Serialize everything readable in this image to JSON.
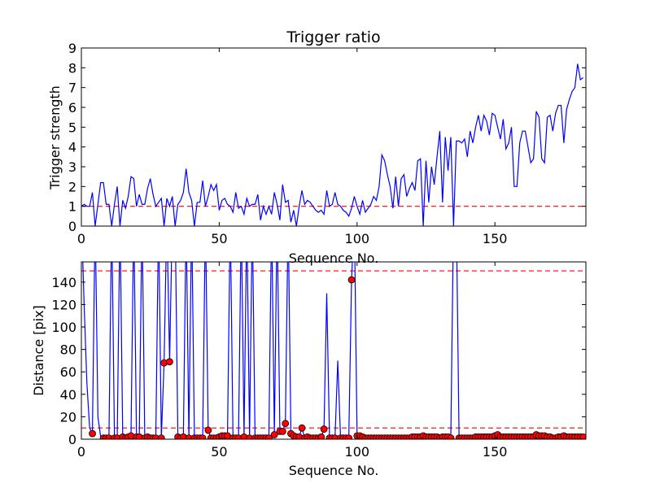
{
  "chart_data": [
    {
      "type": "line",
      "title": "Trigger ratio",
      "xlabel": "Sequence No.",
      "ylabel": "Trigger strength",
      "xlim": [
        0,
        183
      ],
      "ylim": [
        0,
        9
      ],
      "xticks": [
        "0",
        "50",
        "100",
        "150"
      ],
      "yticks": [
        "0",
        "1",
        "2",
        "3",
        "4",
        "5",
        "6",
        "7",
        "8",
        "9"
      ],
      "grid": false,
      "line_color": "#0000ff",
      "threshold": 1.0,
      "threshold_color": "#ff0000",
      "series": [
        {
          "values": [
            1.0,
            1.1,
            1.0,
            1.0,
            1.7,
            0.0,
            1.1,
            2.2,
            2.2,
            1.1,
            1.1,
            0.0,
            1.1,
            2.0,
            0.0,
            1.3,
            0.9,
            1.5,
            2.5,
            2.4,
            1.0,
            1.6,
            1.1,
            1.1,
            1.9,
            2.4,
            1.6,
            1.0,
            1.2,
            1.4,
            0.0,
            1.4,
            1.0,
            1.5,
            0.0,
            1.1,
            1.3,
            1.7,
            2.9,
            1.7,
            1.3,
            0.0,
            1.2,
            1.2,
            2.3,
            1.0,
            1.5,
            2.1,
            1.8,
            2.1,
            0.8,
            1.3,
            1.4,
            1.1,
            1.0,
            0.7,
            1.7,
            0.9,
            1.0,
            0.6,
            1.4,
            1.0,
            1.1,
            1.1,
            1.6,
            0.3,
            1.0,
            0.6,
            1.0,
            0.6,
            1.7,
            1.1,
            0.3,
            2.1,
            1.2,
            1.3,
            0.2,
            0.8,
            0.0,
            1.0,
            1.8,
            1.1,
            1.3,
            1.2,
            1.0,
            0.8,
            0.7,
            0.8,
            0.6,
            1.8,
            1.0,
            1.1,
            1.7,
            1.1,
            1.0,
            0.8,
            0.7,
            0.5,
            0.9,
            1.5,
            1.0,
            0.6,
            1.3,
            0.7,
            0.9,
            1.1,
            1.5,
            1.3,
            2.0,
            3.6,
            3.3,
            2.6,
            2.0,
            0.9,
            2.5,
            1.0,
            2.4,
            2.6,
            1.5,
            1.9,
            2.2,
            1.8,
            3.3,
            3.4,
            0.0,
            3.3,
            1.2,
            3.0,
            2.1,
            3.5,
            4.8,
            1.2,
            4.5,
            2.8,
            4.5,
            0.0,
            4.3,
            4.3,
            4.2,
            4.4,
            3.5,
            4.8,
            4.2,
            5.0,
            5.6,
            4.8,
            5.6,
            5.3,
            4.6,
            5.7,
            5.6,
            5.0,
            4.4,
            5.4,
            3.9,
            4.2,
            5.0,
            2.0,
            2.0,
            4.2,
            4.8,
            4.8,
            4.0,
            3.2,
            3.4,
            5.8,
            5.5,
            3.4,
            3.2,
            5.5,
            5.6,
            4.8,
            5.7,
            6.1,
            6.1,
            4.2,
            5.9,
            6.4,
            6.8,
            7.0,
            8.2,
            7.4,
            7.5
          ]
        }
      ]
    },
    {
      "type": "line",
      "title": "",
      "xlabel": "Sequence No.",
      "ylabel": "Distance [pix]",
      "xlim": [
        0,
        183
      ],
      "ylim": [
        0,
        158
      ],
      "xticks": [
        "0",
        "50",
        "100",
        "150"
      ],
      "yticks": [
        "0",
        "20",
        "40",
        "60",
        "80",
        "100",
        "120",
        "140"
      ],
      "grid": false,
      "line_color": "#0000ff",
      "marker_color": "#ff0000",
      "thresholds": [
        10,
        150
      ],
      "threshold_color": "#ff0000",
      "series": [
        {
          "values": [
            200,
            120,
            50,
            10,
            5,
            200,
            20,
            2,
            1,
            1,
            1,
            200,
            1,
            1,
            200,
            2,
            1,
            2,
            3,
            200,
            2,
            2,
            200,
            1,
            2,
            1,
            1,
            1,
            200,
            1,
            68,
            200,
            69,
            200,
            200,
            2,
            1,
            2,
            200,
            1,
            200,
            1,
            1,
            1,
            1,
            200,
            8,
            1,
            1,
            1,
            2,
            3,
            3,
            3,
            200,
            1,
            1,
            1,
            200,
            2,
            200,
            1,
            200,
            1,
            1,
            1,
            1,
            1,
            1,
            200,
            4,
            200,
            7,
            7,
            14,
            200,
            5,
            3,
            2,
            2,
            10,
            1,
            2,
            1,
            1,
            1,
            1,
            2,
            9,
            130,
            1,
            1,
            1,
            70,
            1,
            1,
            1,
            1,
            142,
            200,
            3,
            3,
            2,
            1,
            1,
            1,
            1,
            1,
            1,
            1,
            1,
            1,
            1,
            1,
            1,
            1,
            1,
            1,
            1,
            1,
            2,
            2,
            2,
            2,
            3,
            2,
            2,
            2,
            2,
            2,
            1,
            2,
            2,
            2,
            1,
            200,
            200,
            1,
            1,
            1,
            1,
            1,
            1,
            2,
            2,
            2,
            2,
            2,
            2,
            2,
            3,
            4,
            2,
            2,
            2,
            2,
            2,
            2,
            2,
            2,
            2,
            2,
            2,
            2,
            2,
            4,
            3,
            3,
            3,
            2,
            2,
            1,
            1,
            2,
            2,
            3,
            2,
            2,
            2,
            2,
            2,
            2,
            2,
            2,
            2,
            2,
            2
          ],
          "markers": [
            [
              4,
              5
            ],
            [
              8,
              1
            ],
            [
              9,
              1
            ],
            [
              10,
              1
            ],
            [
              12,
              1
            ],
            [
              13,
              1
            ],
            [
              15,
              2
            ],
            [
              16,
              1
            ],
            [
              17,
              2
            ],
            [
              18,
              3
            ],
            [
              20,
              2
            ],
            [
              21,
              2
            ],
            [
              23,
              1
            ],
            [
              24,
              2
            ],
            [
              25,
              1
            ],
            [
              26,
              1
            ],
            [
              27,
              1
            ],
            [
              29,
              1
            ],
            [
              30,
              68
            ],
            [
              32,
              69
            ],
            [
              35,
              2
            ],
            [
              36,
              1
            ],
            [
              37,
              2
            ],
            [
              39,
              1
            ],
            [
              41,
              1
            ],
            [
              42,
              1
            ],
            [
              43,
              1
            ],
            [
              44,
              1
            ],
            [
              46,
              8
            ],
            [
              47,
              1
            ],
            [
              48,
              1
            ],
            [
              49,
              1
            ],
            [
              50,
              2
            ],
            [
              51,
              3
            ],
            [
              52,
              3
            ],
            [
              53,
              3
            ],
            [
              55,
              1
            ],
            [
              56,
              1
            ],
            [
              57,
              1
            ],
            [
              59,
              2
            ],
            [
              61,
              1
            ],
            [
              63,
              1
            ],
            [
              64,
              1
            ],
            [
              65,
              1
            ],
            [
              66,
              1
            ],
            [
              67,
              1
            ],
            [
              68,
              1
            ],
            [
              70,
              4
            ],
            [
              72,
              7
            ],
            [
              73,
              7
            ],
            [
              74,
              14
            ],
            [
              76,
              5
            ],
            [
              77,
              3
            ],
            [
              78,
              2
            ],
            [
              79,
              2
            ],
            [
              80,
              10
            ],
            [
              81,
              1
            ],
            [
              82,
              2
            ],
            [
              83,
              1
            ],
            [
              84,
              1
            ],
            [
              85,
              1
            ],
            [
              86,
              1
            ],
            [
              87,
              2
            ],
            [
              88,
              9
            ],
            [
              90,
              1
            ],
            [
              91,
              1
            ],
            [
              92,
              1
            ],
            [
              94,
              1
            ],
            [
              95,
              1
            ],
            [
              96,
              1
            ],
            [
              97,
              1
            ],
            [
              98,
              142
            ],
            [
              100,
              3
            ],
            [
              101,
              3
            ],
            [
              102,
              2
            ],
            [
              103,
              1
            ],
            [
              104,
              1
            ],
            [
              105,
              1
            ],
            [
              106,
              1
            ],
            [
              107,
              1
            ],
            [
              108,
              1
            ],
            [
              109,
              1
            ],
            [
              110,
              1
            ],
            [
              111,
              1
            ],
            [
              112,
              1
            ],
            [
              113,
              1
            ],
            [
              114,
              1
            ],
            [
              115,
              1
            ],
            [
              116,
              1
            ],
            [
              117,
              1
            ],
            [
              118,
              1
            ],
            [
              119,
              1
            ],
            [
              120,
              2
            ],
            [
              121,
              2
            ],
            [
              122,
              2
            ],
            [
              123,
              2
            ],
            [
              124,
              3
            ],
            [
              125,
              2
            ],
            [
              126,
              2
            ],
            [
              127,
              2
            ],
            [
              128,
              2
            ],
            [
              129,
              2
            ],
            [
              130,
              1
            ],
            [
              131,
              2
            ],
            [
              132,
              2
            ],
            [
              133,
              2
            ],
            [
              134,
              1
            ],
            [
              137,
              1
            ],
            [
              138,
              1
            ],
            [
              139,
              1
            ],
            [
              140,
              1
            ],
            [
              141,
              1
            ],
            [
              142,
              1
            ],
            [
              143,
              2
            ],
            [
              144,
              2
            ],
            [
              145,
              2
            ],
            [
              146,
              2
            ],
            [
              147,
              2
            ],
            [
              148,
              2
            ],
            [
              149,
              2
            ],
            [
              150,
              3
            ],
            [
              151,
              4
            ],
            [
              152,
              2
            ],
            [
              153,
              2
            ],
            [
              154,
              2
            ],
            [
              155,
              2
            ],
            [
              156,
              2
            ],
            [
              157,
              2
            ],
            [
              158,
              2
            ],
            [
              159,
              2
            ],
            [
              160,
              2
            ],
            [
              161,
              2
            ],
            [
              162,
              2
            ],
            [
              163,
              2
            ],
            [
              164,
              2
            ],
            [
              165,
              4
            ],
            [
              166,
              3
            ],
            [
              167,
              3
            ],
            [
              168,
              3
            ],
            [
              169,
              2
            ],
            [
              170,
              2
            ],
            [
              171,
              1
            ],
            [
              172,
              1
            ],
            [
              173,
              2
            ],
            [
              174,
              2
            ],
            [
              175,
              3
            ],
            [
              176,
              2
            ],
            [
              177,
              2
            ],
            [
              178,
              2
            ],
            [
              179,
              2
            ],
            [
              180,
              2
            ],
            [
              181,
              2
            ],
            [
              182,
              2
            ]
          ]
        }
      ]
    }
  ]
}
